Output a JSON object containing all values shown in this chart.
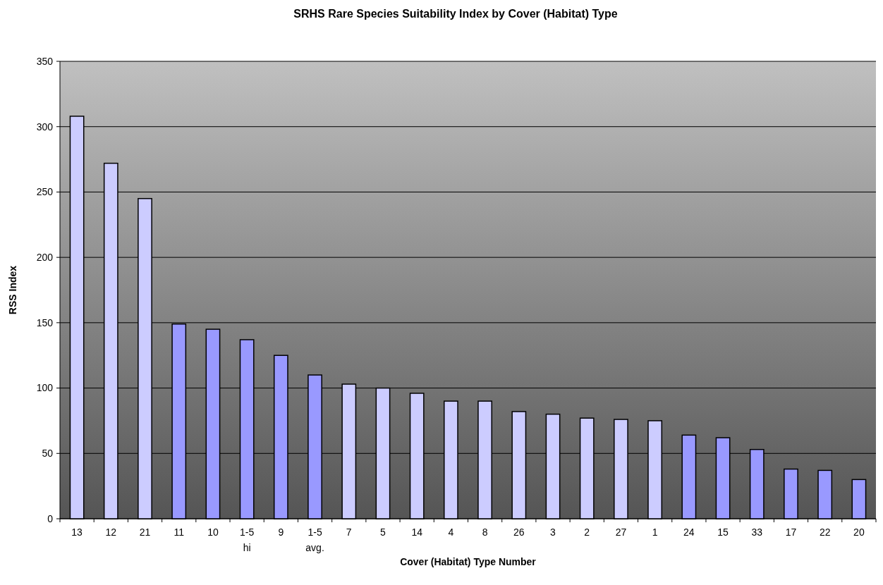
{
  "chart_data": {
    "type": "bar",
    "title": "SRHS Rare Species Suitability Index by Cover (Habitat) Type",
    "xlabel": "Cover (Habitat) Type Number",
    "ylabel": "RSS Index",
    "categories": [
      "13",
      "12",
      "21",
      "11",
      "10",
      "1-5\nhi",
      "9",
      "1-5\navg.",
      "7",
      "5",
      "14",
      "4",
      "8",
      "26",
      "3",
      "2",
      "27",
      "1",
      "24",
      "15",
      "33",
      "17",
      "22",
      "20"
    ],
    "values": [
      308,
      272,
      245,
      149,
      145,
      137,
      125,
      110,
      103,
      100,
      96,
      90,
      90,
      82,
      80,
      77,
      76,
      75,
      64,
      62,
      53,
      38,
      37,
      30
    ],
    "colors": [
      "#ccccff",
      "#ccccff",
      "#ccccff",
      "#9999ff",
      "#9999ff",
      "#9999ff",
      "#9999ff",
      "#9999ff",
      "#ccccff",
      "#ccccff",
      "#ccccff",
      "#ccccff",
      "#ccccff",
      "#ccccff",
      "#ccccff",
      "#ccccff",
      "#ccccff",
      "#ccccff",
      "#9999ff",
      "#9999ff",
      "#9999ff",
      "#9999ff",
      "#9999ff",
      "#9999ff"
    ],
    "ylim": [
      0,
      350
    ],
    "yticks": [
      0,
      50,
      100,
      150,
      200,
      250,
      300,
      350
    ],
    "grid": "y"
  }
}
